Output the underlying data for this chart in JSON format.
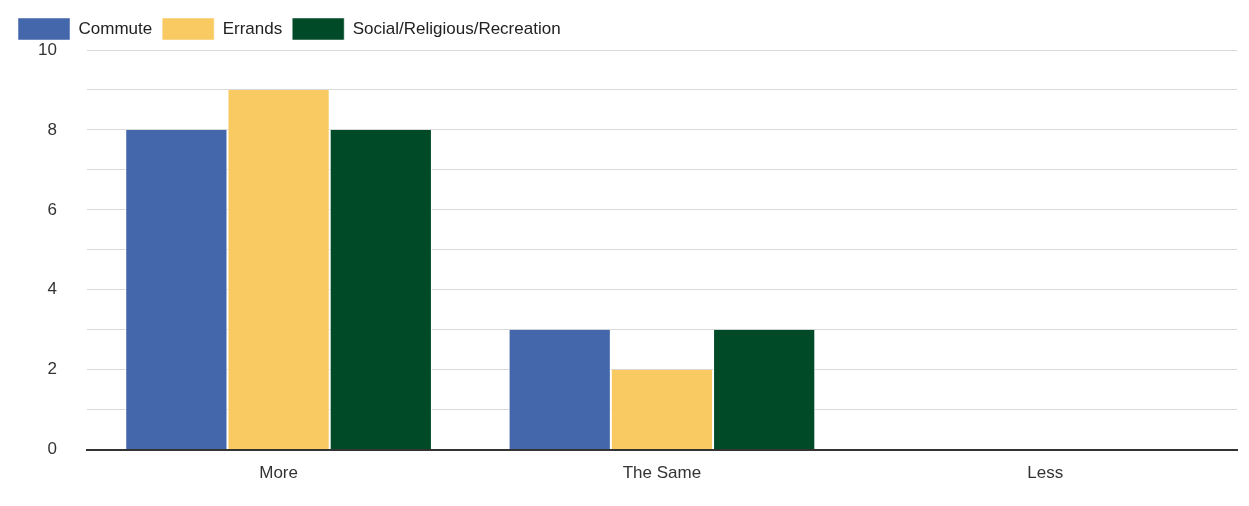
{
  "chart_data": {
    "type": "bar",
    "categories": [
      "More",
      "The Same",
      "Less"
    ],
    "series": [
      {
        "name": "Commute",
        "color": "#4466ab",
        "values": [
          8,
          3,
          0
        ]
      },
      {
        "name": "Errands",
        "color": "#f9ca62",
        "values": [
          9,
          2,
          0
        ]
      },
      {
        "name": "Social/Religious/Recreation",
        "color": "#004a28",
        "values": [
          8,
          3,
          0
        ]
      }
    ],
    "ylim": [
      0,
      10
    ],
    "yticks": [
      0,
      {
        "value": 1,
        "label": null
      },
      2,
      {
        "value": 3,
        "label": null
      },
      4,
      {
        "value": 5,
        "label": null
      },
      6,
      {
        "value": 7,
        "label": null
      },
      8,
      {
        "value": 9,
        "label": null
      },
      10
    ],
    "grid": "y",
    "legend": "top left"
  }
}
